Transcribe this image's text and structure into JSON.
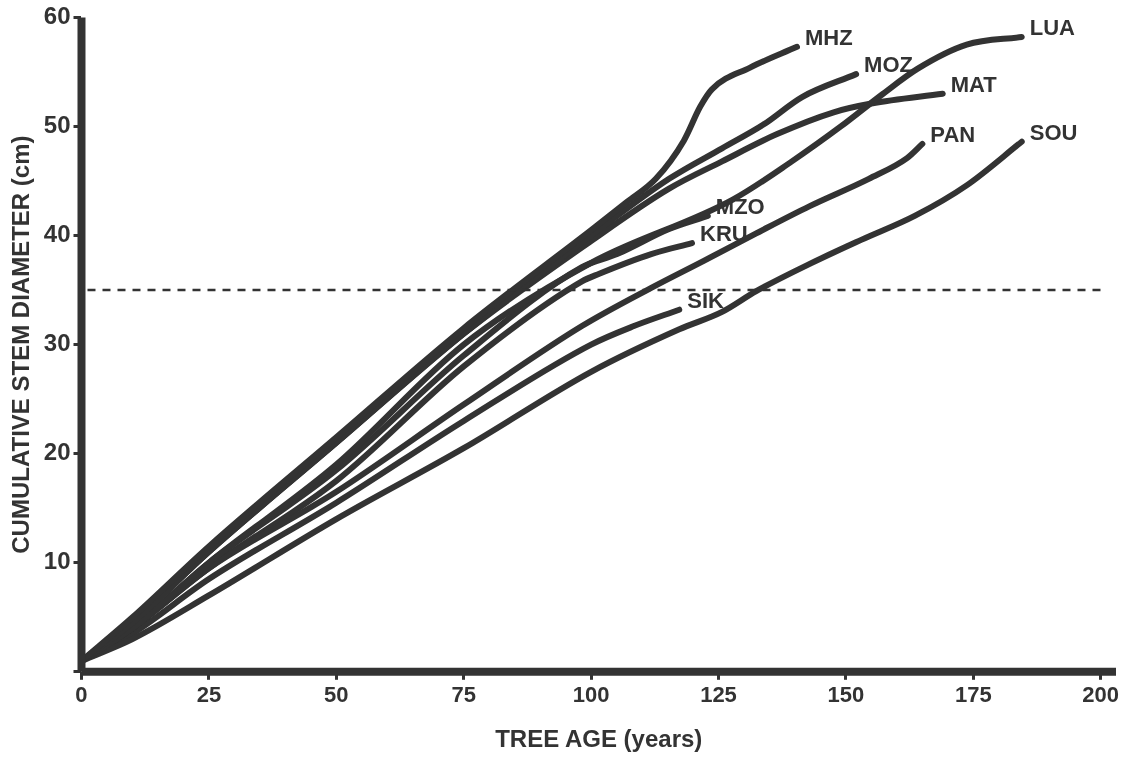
{
  "chart_data": {
    "type": "line",
    "xlabel": "TREE AGE (years)",
    "ylabel": "CUMULATIVE STEM DIAMETER (cm)",
    "xlim": [
      0,
      203
    ],
    "xticks": [
      0,
      25,
      50,
      75,
      100,
      125,
      150,
      175,
      200
    ],
    "ylim": [
      0,
      60
    ],
    "yticks": [
      {
        "value": 0,
        "label": null
      },
      10,
      20,
      30,
      40,
      50,
      60
    ],
    "legend": false,
    "marker": "none",
    "line_style": "solid",
    "ref_lines": [
      {
        "axis": "y",
        "value": 35,
        "line_style": "dashed",
        "color": "#333333"
      }
    ],
    "series": [
      {
        "name": "MHZ",
        "color": "#333333",
        "x": [
          0,
          10,
          25,
          50,
          75,
          100,
          107.1,
          112.7,
          118.2,
          121.4,
          123.7,
          131.2,
          140.4
        ],
        "values": [
          1,
          5,
          11.5,
          21.5,
          31.5,
          40.5,
          43.1,
          45.2,
          48.7,
          51.8,
          53.4,
          55.4,
          57.3
        ]
      },
      {
        "name": "MOZ",
        "color": "#333333",
        "x": [
          0,
          10,
          25,
          50,
          75,
          100,
          115.3,
          125.7,
          133.9,
          141.4,
          152
        ],
        "values": [
          1,
          4.5,
          11,
          21,
          31,
          40,
          45.2,
          48,
          50.2,
          52.7,
          54.8
        ]
      },
      {
        "name": "LUA",
        "color": "#333333",
        "x": [
          0,
          10,
          25,
          50,
          75,
          100,
          127.8,
          139.4,
          149,
          157.3,
          164.1,
          173.7,
          184.5
        ],
        "values": [
          1,
          4,
          10,
          19,
          30,
          37.5,
          43.3,
          46.8,
          50,
          53,
          55.3,
          57.5,
          58.2
        ]
      },
      {
        "name": "MAT",
        "color": "#333333",
        "x": [
          0,
          10,
          25,
          50,
          75,
          100,
          115.3,
          125.7,
          136.5,
          147.6,
          155,
          169
        ],
        "values": [
          1,
          4.5,
          11,
          21,
          31,
          39.5,
          44.3,
          46.8,
          49.3,
          51.3,
          52.1,
          53
        ]
      },
      {
        "name": "PAN",
        "color": "#333333",
        "x": [
          0,
          10,
          25,
          50,
          75,
          98.2,
          111.8,
          122.2,
          132.4,
          142.9,
          154.5,
          162,
          165
        ],
        "values": [
          1,
          4,
          9.5,
          16.5,
          24.5,
          31.7,
          35.2,
          37.7,
          40.2,
          42.7,
          45.2,
          47.1,
          48.4
        ]
      },
      {
        "name": "SOU",
        "color": "#333333",
        "x": [
          0,
          10,
          25,
          50,
          75,
          100,
          117.3,
          125.7,
          132.4,
          142.9,
          153,
          163.5,
          173.7,
          184.5
        ],
        "values": [
          1,
          3,
          7,
          14,
          20.5,
          27.5,
          31.4,
          33,
          34.9,
          37.4,
          39.6,
          41.8,
          44.6,
          48.6
        ]
      },
      {
        "name": "MZO",
        "color": "#333333",
        "x": [
          0,
          10,
          25,
          50,
          75,
          98.2,
          105.1,
          115.3,
          122.9
        ],
        "values": [
          1,
          4,
          10,
          18.5,
          29,
          37.1,
          38.3,
          40.6,
          41.8
        ]
      },
      {
        "name": "KRU",
        "color": "#333333",
        "x": [
          0,
          10,
          25,
          50,
          75,
          98.2,
          101.6,
          111.8,
          119.8
        ],
        "values": [
          1,
          4,
          9.5,
          17.5,
          28,
          35.8,
          36.5,
          38.3,
          39.3
        ]
      },
      {
        "name": "SIK",
        "color": "#333333",
        "x": [
          0,
          10,
          25,
          50,
          75,
          100,
          108.4,
          117.3
        ],
        "values": [
          1,
          3.5,
          8.5,
          15.5,
          23,
          30,
          31.7,
          33.2
        ]
      }
    ]
  }
}
